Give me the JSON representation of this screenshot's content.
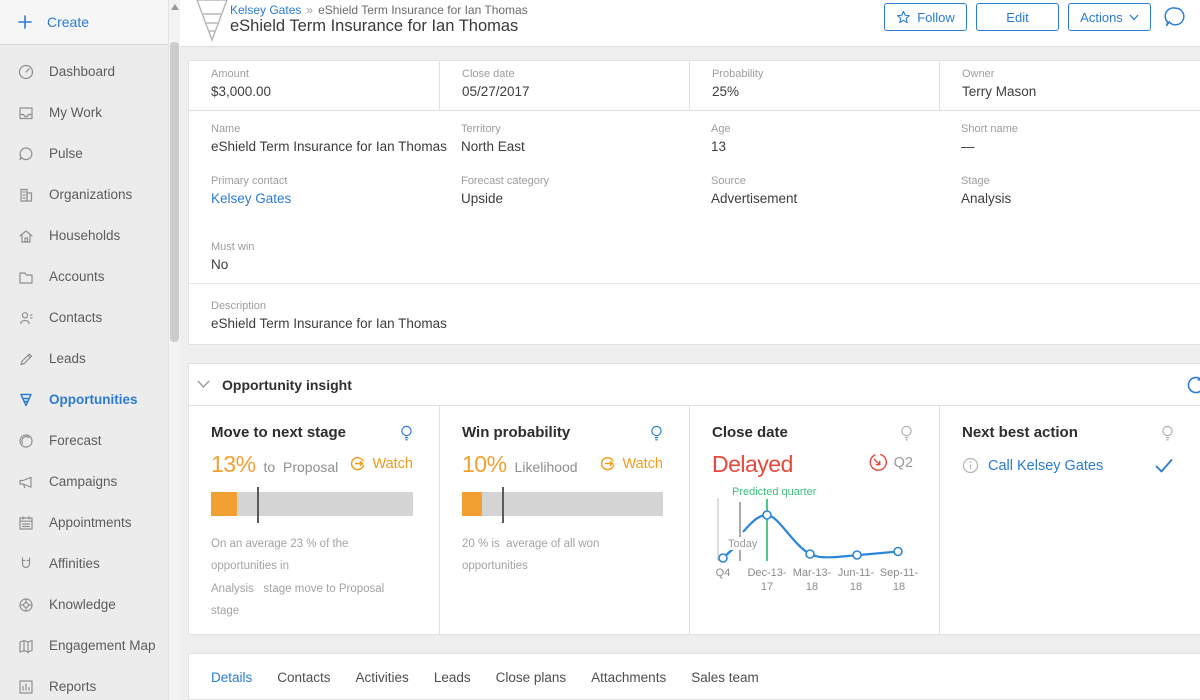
{
  "colors": {
    "accent": "#2b7bd4",
    "orange": "#f2a032",
    "red": "#e8493c",
    "green": "#3fbf7f"
  },
  "sidebar": {
    "create_label": "Create",
    "items": [
      {
        "label": "Dashboard",
        "active": false
      },
      {
        "label": "My Work",
        "active": false
      },
      {
        "label": "Pulse",
        "active": false
      },
      {
        "label": "Organizations",
        "active": false
      },
      {
        "label": "Households",
        "active": false
      },
      {
        "label": "Accounts",
        "active": false
      },
      {
        "label": "Contacts",
        "active": false
      },
      {
        "label": "Leads",
        "active": false
      },
      {
        "label": "Opportunities",
        "active": true
      },
      {
        "label": "Forecast",
        "active": false
      },
      {
        "label": "Campaigns",
        "active": false
      },
      {
        "label": "Appointments",
        "active": false
      },
      {
        "label": "Affinities",
        "active": false
      },
      {
        "label": "Knowledge",
        "active": false
      },
      {
        "label": "Engagement Map",
        "active": false
      },
      {
        "label": "Reports",
        "active": false
      }
    ]
  },
  "header": {
    "breadcrumb": {
      "parent": "Kelsey Gates",
      "separator": "»",
      "current": "eShield Term Insurance for Ian Thomas"
    },
    "title": "eShield Term Insurance for Ian Thomas",
    "follow_label": "Follow",
    "edit_label": "Edit",
    "actions_label": "Actions"
  },
  "details": {
    "summary": [
      {
        "label": "Amount",
        "value": "$3,000.00"
      },
      {
        "label": "Close date",
        "value": "05/27/2017"
      },
      {
        "label": "Probability",
        "value": "25%"
      },
      {
        "label": "Owner",
        "value": "Terry Mason"
      }
    ],
    "row1": [
      {
        "label": "Name",
        "value": "eShield Term Insurance for Ian Thomas"
      },
      {
        "label": "Territory",
        "value": "North East"
      },
      {
        "label": "Age",
        "value": "13"
      },
      {
        "label": "Short name",
        "value": "—"
      }
    ],
    "row2": [
      {
        "label": "Primary contact",
        "value": "Kelsey Gates"
      },
      {
        "label": "Forecast category",
        "value": "Upside"
      },
      {
        "label": "Source",
        "value": "Advertisement"
      },
      {
        "label": "Stage",
        "value": "Analysis"
      }
    ],
    "must_win": {
      "label": "Must win",
      "value": "No"
    },
    "description": {
      "label": "Description",
      "value": "eShield Term Insurance for Ian Thomas"
    }
  },
  "insight": {
    "title": "Opportunity insight",
    "cards": [
      {
        "title": "Move to next stage",
        "value": "13%",
        "suffix": "to  Proposal",
        "watch_label": "Watch",
        "fill_pct": 13,
        "marker_pct": 23,
        "caption": "On an average 23 % of the opportunities in\nAnalysis   stage move to Proposal  stage"
      },
      {
        "title": "Win probability",
        "value": "10%",
        "suffix": "Likelihood",
        "watch_label": "Watch",
        "fill_pct": 10,
        "marker_pct": 20,
        "caption": "20 % is  average of all won opportunities"
      },
      {
        "title": "Close date",
        "status": "Delayed",
        "quarter": "Q2",
        "chart": {
          "predicted_label": "Predicted quarter",
          "today_label": "Today",
          "ticks": [
            [
              "Q4",
              ""
            ],
            [
              "Dec-13-",
              "17"
            ],
            [
              "Mar-13-",
              "18"
            ],
            [
              "Jun-11-",
              "18"
            ],
            [
              "Sep-11-",
              "18"
            ]
          ]
        }
      },
      {
        "title": "Next best action",
        "action": "Call Kelsey Gates"
      }
    ]
  },
  "tabs": [
    {
      "label": "Details",
      "active": true
    },
    {
      "label": "Contacts",
      "active": false
    },
    {
      "label": "Activities",
      "active": false
    },
    {
      "label": "Leads",
      "active": false
    },
    {
      "label": "Close plans",
      "active": false
    },
    {
      "label": "Attachments",
      "active": false
    },
    {
      "label": "Sales team",
      "active": false
    }
  ],
  "chart_data": {
    "type": "line",
    "title": "Close date prediction",
    "categories": [
      "Q4",
      "Dec-13-17",
      "Mar-13-18",
      "Jun-11-18",
      "Sep-11-18"
    ],
    "values": [
      0.05,
      0.75,
      0.12,
      0.1,
      0.17
    ],
    "xlabel": "",
    "ylabel": "",
    "grid": false,
    "legend": "none",
    "annotations": [
      {
        "label": "Today",
        "position": "between Q4 and Dec-13-17",
        "color": "#aaaaaa"
      },
      {
        "label": "Predicted quarter",
        "position": "Dec-13-17",
        "color": "#3fbf7f"
      }
    ]
  }
}
